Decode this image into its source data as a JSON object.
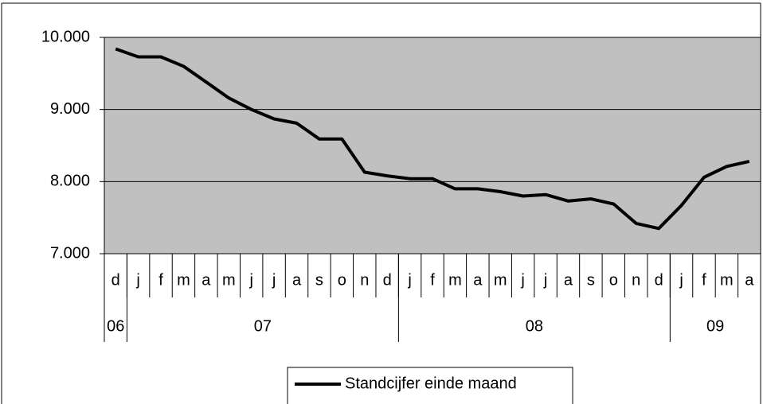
{
  "chart_data": {
    "type": "line",
    "categories": [
      "d",
      "j",
      "f",
      "m",
      "a",
      "m",
      "j",
      "j",
      "a",
      "s",
      "o",
      "n",
      "d",
      "j",
      "f",
      "m",
      "a",
      "m",
      "j",
      "j",
      "a",
      "s",
      "o",
      "n",
      "d",
      "j",
      "f",
      "m",
      "a"
    ],
    "groups": [
      {
        "label": "06",
        "span": 1
      },
      {
        "label": "07",
        "span": 12
      },
      {
        "label": "08",
        "span": 12
      },
      {
        "label": "09",
        "span": 4
      }
    ],
    "series": [
      {
        "name": "Standcijfer einde maand",
        "color": "#000000",
        "values": [
          9840,
          9730,
          9730,
          9600,
          9380,
          9160,
          9000,
          8870,
          8810,
          8590,
          8590,
          8130,
          8080,
          8040,
          8040,
          7900,
          7900,
          7860,
          7800,
          7820,
          7730,
          7760,
          7690,
          7420,
          7350,
          7670,
          8060,
          8210,
          8280
        ]
      }
    ],
    "ylim": [
      7000,
      10000
    ],
    "yticks": [
      {
        "value": 7000,
        "label": "7.000"
      },
      {
        "value": 8000,
        "label": "8.000"
      },
      {
        "value": 9000,
        "label": "9.000"
      },
      {
        "value": 10000,
        "label": "10.000"
      }
    ],
    "grid": true,
    "plot_background": "#c0c0c0",
    "legend": "bottom"
  }
}
